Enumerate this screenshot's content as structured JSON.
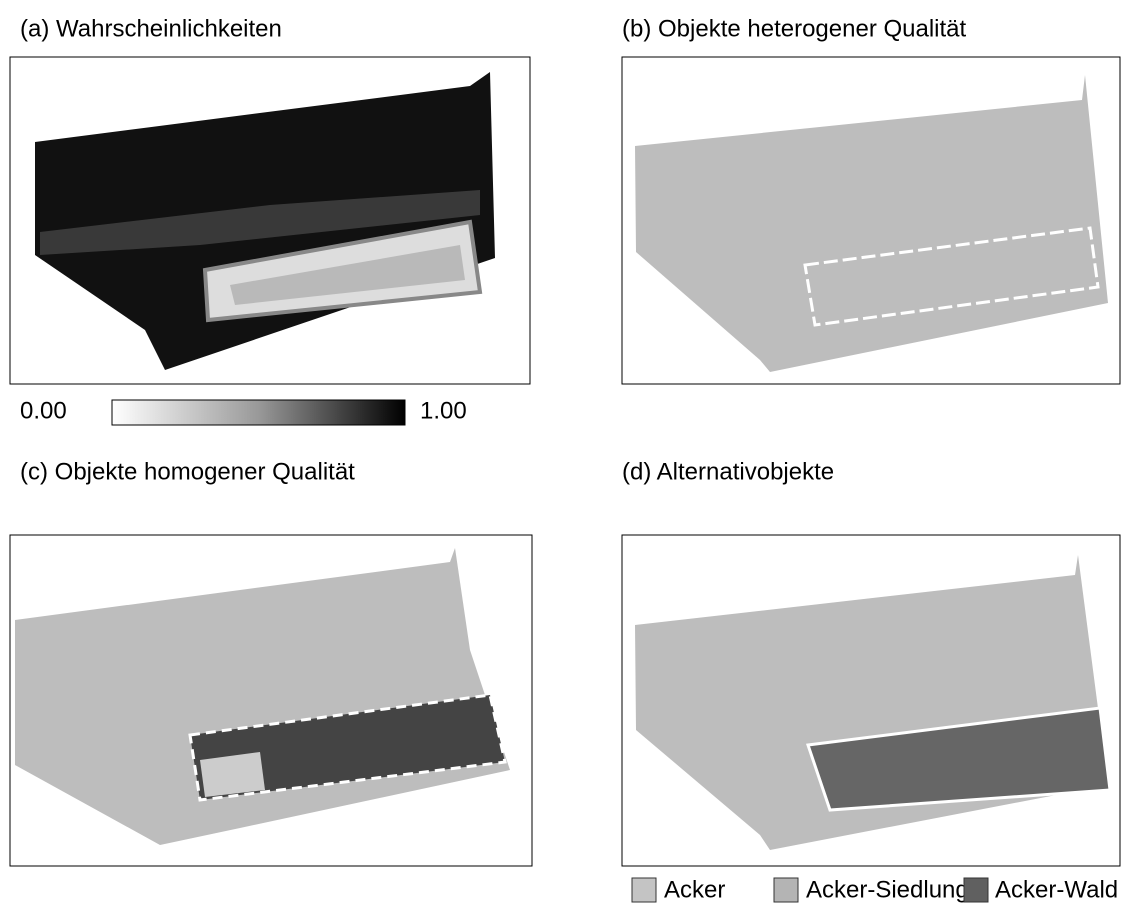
{
  "panels": [
    {
      "title": "(a) Wahrscheinlichkeiten"
    },
    {
      "title": "(b) Objekte heterogener Qualität"
    },
    {
      "title": "(c) Objekte homogener Qualität"
    },
    {
      "title": "(d) Alternativobjekte"
    }
  ],
  "colorbar": {
    "min_label": "0.00",
    "max_label": "1.00"
  },
  "legend": [
    "Acker",
    "Acker-Siedlung",
    "Acker-Wald"
  ]
}
